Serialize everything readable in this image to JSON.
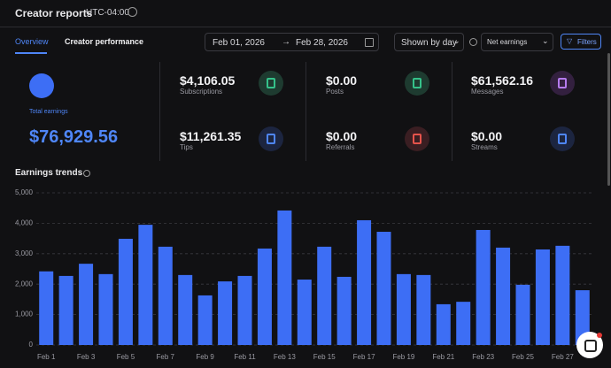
{
  "header": {
    "title": "Creator reports",
    "timezone": "UTC-04:00"
  },
  "tabs": [
    "Overview",
    "Creator performance"
  ],
  "filters": {
    "date_from": "Feb 01, 2026",
    "date_to": "Feb 28, 2026",
    "grouping": "Shown by day",
    "metric": "Net earnings",
    "button": "Filters"
  },
  "total": {
    "label": "Total earnings",
    "value": "$76,929.56"
  },
  "stats": [
    {
      "value": "$4,106.05",
      "label": "Subscriptions"
    },
    {
      "value": "$11,261.35",
      "label": "Tips"
    },
    {
      "value": "$0.00",
      "label": "Posts"
    },
    {
      "value": "$0.00",
      "label": "Referrals"
    },
    {
      "value": "$61,562.16",
      "label": "Messages"
    },
    {
      "value": "$0.00",
      "label": "Streams"
    }
  ],
  "chart_data": {
    "type": "bar",
    "title": "Earnings trends",
    "categories": [
      "Feb 1",
      null,
      "Feb 3",
      null,
      "Feb 5",
      null,
      "Feb 7",
      null,
      "Feb 9",
      null,
      "Feb 11",
      null,
      "Feb 13",
      null,
      "Feb 15",
      null,
      "Feb 17",
      null,
      "Feb 19",
      null,
      "Feb 21",
      null,
      "Feb 23",
      null,
      "Feb 25",
      null,
      "Feb 27",
      null
    ],
    "values": [
      2420,
      2270,
      2670,
      2330,
      3490,
      3950,
      3230,
      2300,
      1630,
      2090,
      2270,
      3170,
      4420,
      2150,
      3230,
      2240,
      4100,
      3720,
      2330,
      2300,
      1340,
      1420,
      3780,
      3200,
      1980,
      3140,
      3260,
      1800
    ],
    "color": "#3d6ef5",
    "ylim": [
      0,
      5000
    ],
    "yticks": [
      0,
      {
        "value": 1000,
        "label": "1,000"
      },
      {
        "value": 2000,
        "label": "2,000"
      },
      {
        "value": 3000,
        "label": "3,000"
      },
      {
        "value": 4000,
        "label": "4,000"
      },
      {
        "value": 5000,
        "label": "5,000"
      }
    ],
    "grid": true
  }
}
